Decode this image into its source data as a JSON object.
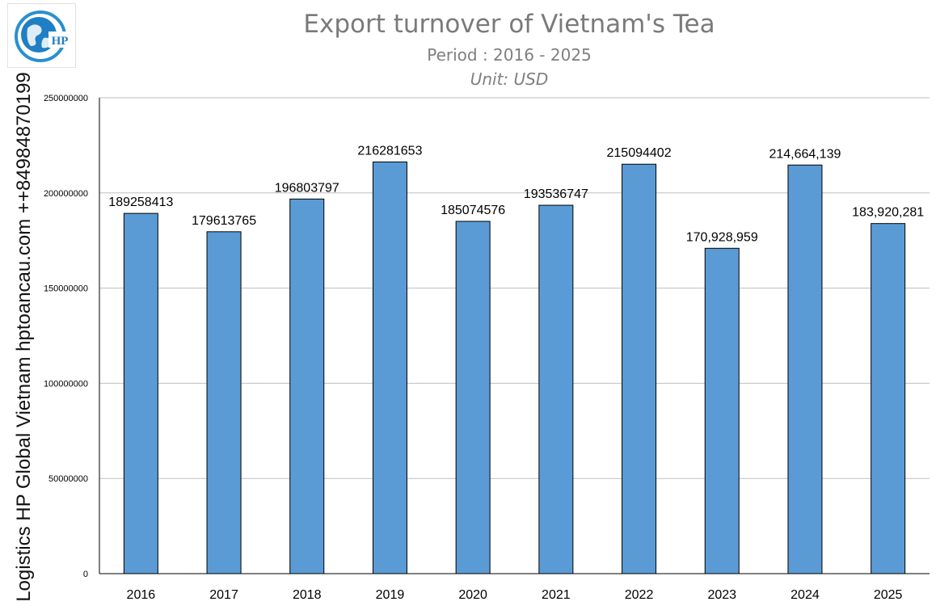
{
  "header": {
    "title": "Export turnover of Vietnam's Tea",
    "subtitle": "Period : 2016 - 2025",
    "unit": "Unit: USD"
  },
  "watermark": {
    "side_text": "Logistics HP Global Vietnam hptoancau.com ++84984870199",
    "logo_text": "HP",
    "logo_icon": "globe-icon"
  },
  "colors": {
    "bar": "#5b9bd5",
    "bar_outline": "#000000",
    "grid": "#bfbfbf",
    "title": "#7a7a7a"
  },
  "chart_data": {
    "type": "bar",
    "title": "Export turnover of Vietnam's Tea",
    "subtitle": "Period : 2016 - 2025",
    "ylabel": "",
    "xlabel": "",
    "categories": [
      "2016",
      "2017",
      "2018",
      "2019",
      "2020",
      "2021",
      "2022",
      "2023",
      "2024",
      "2025"
    ],
    "values": [
      189258413,
      179613765,
      196803797,
      216281653,
      185074576,
      193536747,
      215094402,
      170928959,
      214664139,
      183920281
    ],
    "data_labels": [
      "189258413",
      "179613765",
      "196803797",
      "216281653",
      "185074576",
      "193536747",
      "215094402",
      "170,928,959",
      "214,664,139",
      "183,920,281"
    ],
    "ylim": [
      0,
      250000000
    ],
    "yticks": [
      0,
      50000000,
      100000000,
      150000000,
      200000000,
      250000000
    ],
    "ytick_labels": [
      "0",
      "50000000",
      "100000000",
      "150000000",
      "200000000",
      "250000000"
    ],
    "grid": true,
    "legend": "none"
  }
}
